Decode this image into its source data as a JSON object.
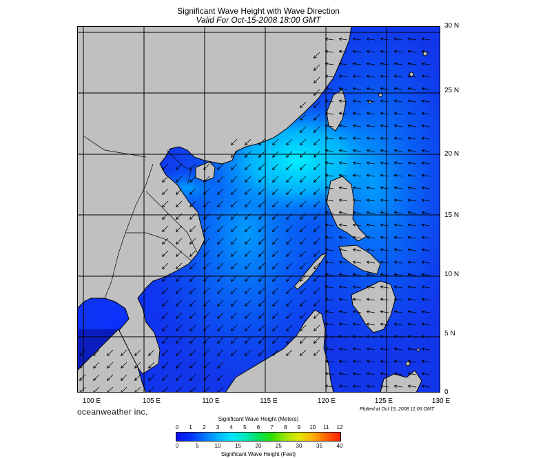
{
  "title": "Significant Wave Height with Wave Direction",
  "subtitle": "Valid For Oct-15-2008 18:00 GMT",
  "brand": "oceanweather inc.",
  "plotted": "Plotted at Oct 15, 2008 11:06 GMT",
  "lat_labels": [
    "30 N",
    "25 N",
    "20 N",
    "15 N",
    "10 N",
    "5 N",
    "0"
  ],
  "lon_labels": [
    "100 E",
    "105 E",
    "110 E",
    "115 E",
    "120 E",
    "125 E",
    "130 E"
  ],
  "colorbar": {
    "title_meters": "Significant Wave Height (Meters)",
    "title_feet": "Significant Wave Height (Feet)",
    "meter_ticks": [
      "0",
      "1",
      "2",
      "3",
      "4",
      "5",
      "6",
      "7",
      "8",
      "9",
      "10",
      "11",
      "12"
    ],
    "feet_ticks": [
      "0",
      "5",
      "10",
      "15",
      "20",
      "25",
      "30",
      "35",
      "40"
    ],
    "colors": [
      "#0a10f0",
      "#0030ff",
      "#0070ff",
      "#00b0ff",
      "#00e6ff",
      "#00e8c0",
      "#00e060",
      "#30e000",
      "#a0e600",
      "#e6e600",
      "#ffb000",
      "#ff6000",
      "#ff1e00"
    ]
  },
  "map": {
    "lon_range": [
      99,
      130
    ],
    "lat_range": [
      0,
      30
    ],
    "land_color": "#c0c0c0",
    "deep_color": "#1238e8"
  }
}
